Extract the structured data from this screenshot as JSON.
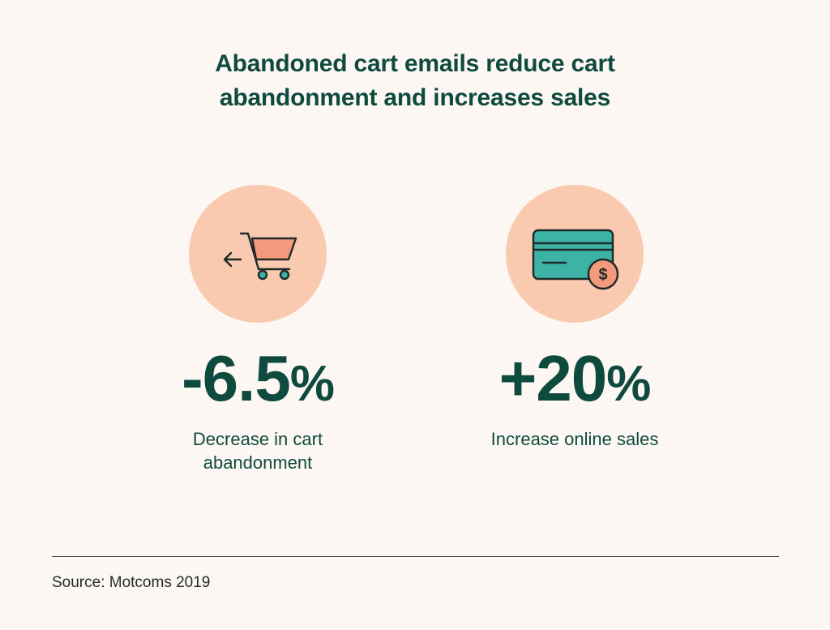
{
  "title": {
    "line1": "Abandoned cart emails reduce cart",
    "line2": "abandonment and increases sales"
  },
  "stats": [
    {
      "icon": "shopping-cart-icon",
      "value": "-6.5",
      "unit": "%",
      "description_line1": "Decrease in cart",
      "description_line2": "abandonment"
    },
    {
      "icon": "credit-card-dollar-icon",
      "value": "+20",
      "unit": "%",
      "description_line1": "Increase online sales",
      "description_line2": ""
    }
  ],
  "source": "Source: Motcoms 2019",
  "colors": {
    "background": "#fdf7f3",
    "text": "#0f4a3f",
    "circle": "#f9c9b0",
    "cart": "#f49a7c",
    "card": "#3cb3a4"
  }
}
